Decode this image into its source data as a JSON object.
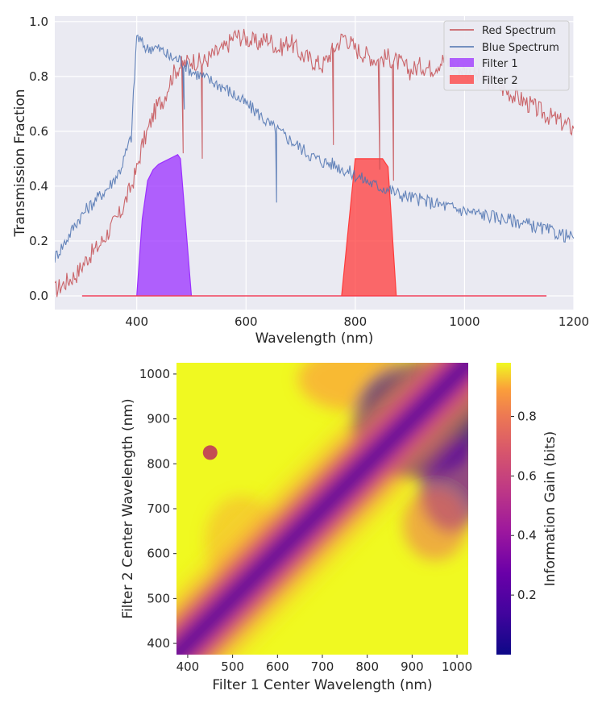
{
  "chart_data": [
    {
      "type": "line",
      "xlabel": "Wavelength (nm)",
      "ylabel": "Transmission Fraction",
      "xlim": [
        250,
        1200
      ],
      "ylim": [
        -0.05,
        1.02
      ],
      "xticks": [
        400,
        600,
        800,
        1000,
        1200
      ],
      "yticks": [
        0.0,
        0.2,
        0.4,
        0.6,
        0.8,
        1.0
      ],
      "grid": true,
      "legend_position": "top-right",
      "series": [
        {
          "name": "Red Spectrum",
          "kind": "line",
          "color": "#c44e52",
          "x": [
            250,
            270,
            290,
            310,
            330,
            350,
            370,
            390,
            400,
            410,
            420,
            430,
            440,
            450,
            460,
            470,
            480,
            490,
            500,
            520,
            540,
            560,
            580,
            600,
            620,
            640,
            660,
            680,
            700,
            720,
            740,
            760,
            780,
            800,
            820,
            840,
            860,
            880,
            900,
            920,
            940,
            960,
            980,
            1000,
            1050,
            1100,
            1150,
            1200
          ],
          "y": [
            0.02,
            0.05,
            0.08,
            0.14,
            0.18,
            0.24,
            0.3,
            0.4,
            0.46,
            0.55,
            0.6,
            0.66,
            0.7,
            0.72,
            0.78,
            0.82,
            0.84,
            0.85,
            0.86,
            0.85,
            0.88,
            0.9,
            0.95,
            0.94,
            0.92,
            0.94,
            0.9,
            0.93,
            0.88,
            0.86,
            0.84,
            0.9,
            0.95,
            0.9,
            0.88,
            0.86,
            0.87,
            0.85,
            0.82,
            0.84,
            0.83,
            0.86,
            0.84,
            0.82,
            0.78,
            0.72,
            0.66,
            0.61
          ]
        },
        {
          "name": "Blue Spectrum",
          "kind": "line",
          "color": "#4c72b0",
          "x": [
            250,
            270,
            290,
            310,
            330,
            350,
            370,
            390,
            400,
            410,
            420,
            430,
            440,
            450,
            460,
            480,
            500,
            520,
            540,
            560,
            580,
            600,
            620,
            640,
            660,
            680,
            700,
            720,
            740,
            760,
            780,
            800,
            820,
            840,
            860,
            880,
            900,
            920,
            940,
            960,
            980,
            1000,
            1050,
            1100,
            1150,
            1200
          ],
          "y": [
            0.14,
            0.2,
            0.27,
            0.32,
            0.36,
            0.4,
            0.46,
            0.58,
            0.95,
            0.92,
            0.9,
            0.91,
            0.9,
            0.89,
            0.87,
            0.86,
            0.82,
            0.8,
            0.78,
            0.76,
            0.73,
            0.7,
            0.67,
            0.63,
            0.6,
            0.57,
            0.54,
            0.51,
            0.49,
            0.48,
            0.46,
            0.44,
            0.42,
            0.4,
            0.39,
            0.37,
            0.36,
            0.35,
            0.34,
            0.33,
            0.32,
            0.31,
            0.29,
            0.27,
            0.24,
            0.21
          ]
        },
        {
          "name": "Filter 1",
          "kind": "area",
          "color": "#9b30ff",
          "x": [
            300,
            400,
            410,
            420,
            430,
            440,
            450,
            460,
            470,
            475,
            480,
            500,
            1150
          ],
          "y": [
            0.0,
            0.0,
            0.28,
            0.42,
            0.46,
            0.48,
            0.49,
            0.5,
            0.51,
            0.515,
            0.5,
            0.0,
            0.0
          ]
        },
        {
          "name": "Filter 2",
          "kind": "area",
          "color": "#ff3b3b",
          "x": [
            300,
            775,
            800,
            810,
            840,
            850,
            860,
            875,
            1150
          ],
          "y": [
            0.0,
            0.0,
            0.5,
            0.5,
            0.5,
            0.5,
            0.47,
            0.0,
            0.0
          ]
        }
      ]
    },
    {
      "type": "heatmap",
      "xlabel": "Filter 1 Center Wavelength (nm)",
      "ylabel": "Filter 2 Center Wavelength (nm)",
      "xlim": [
        375,
        1025
      ],
      "ylim": [
        375,
        1025
      ],
      "xticks": [
        400,
        500,
        600,
        700,
        800,
        900,
        1000
      ],
      "yticks": [
        400,
        500,
        600,
        700,
        800,
        900,
        1000
      ],
      "colormap": "plasma",
      "colorbar": {
        "label": "Information Gain (bits)",
        "range": [
          0.0,
          0.98
        ],
        "ticks": [
          0.2,
          0.4,
          0.6,
          0.8
        ]
      },
      "description_of_field": "low information gain along the diagonal where both filter centers are equal; high elsewhere",
      "marker": {
        "x": 450,
        "y": 825,
        "color": "#c44e52"
      }
    }
  ]
}
